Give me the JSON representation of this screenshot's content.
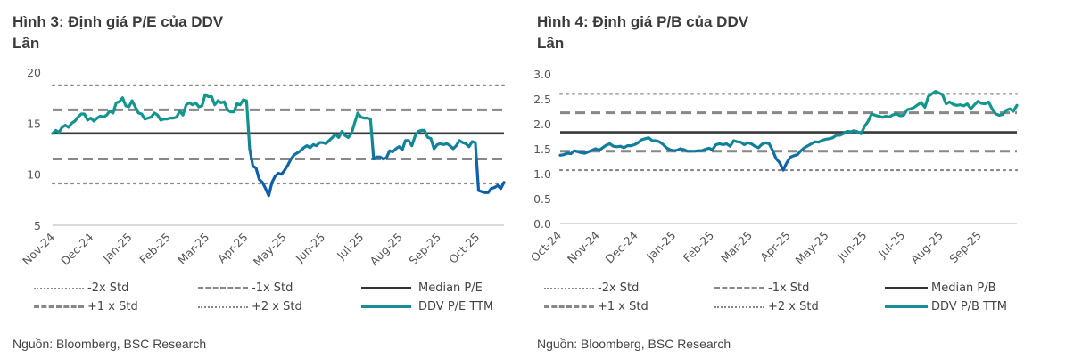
{
  "colors": {
    "series_high": "#12978d",
    "series_low": "#0d5fae",
    "median": "#3a3a3a",
    "std_lines": "#888888",
    "axis": "#d9d9d9",
    "legend_series": "#1a8e96"
  },
  "chart_data": [
    {
      "type": "line",
      "title": "Hình 3: Định giá P/E của DDV",
      "ylabel": "Lần",
      "xlabel": "",
      "ylim": [
        5,
        20
      ],
      "yticks": [
        "5",
        "10",
        "15",
        "20"
      ],
      "ytick_values": [
        5,
        10,
        15,
        20
      ],
      "x_tick_labels": [
        "Nov-24",
        "Dec-24",
        "Jan-25",
        "Feb-25",
        "Mar-25",
        "Apr-25",
        "May-25",
        "Jun-25",
        "Jul-25",
        "Aug-25",
        "Sep-25",
        "Oct-25"
      ],
      "x_range_months": [
        0,
        11.7
      ],
      "grid": false,
      "legend_position": "bottom",
      "reference_lines": [
        {
          "name": "-2x Std",
          "value": 9.1,
          "style": "dotted"
        },
        {
          "name": "-1x Std",
          "value": 11.5,
          "style": "dashed"
        },
        {
          "name": "Median P/E",
          "value": 14.0,
          "style": "solid"
        },
        {
          "name": "+1 x Std",
          "value": 16.3,
          "style": "dashed"
        },
        {
          "name": "+2 x Std",
          "value": 18.7,
          "style": "dotted"
        }
      ],
      "series": [
        {
          "name": "DDV P/E TTM",
          "values": [
            14.0,
            14.3,
            14.1,
            14.6,
            14.8,
            14.6,
            15.0,
            15.2,
            15.6,
            15.9,
            15.9,
            15.3,
            15.5,
            15.2,
            15.5,
            15.7,
            15.6,
            15.8,
            16.2,
            16.0,
            17.0,
            17.1,
            17.5,
            16.7,
            16.6,
            17.2,
            16.6,
            16.0,
            15.9,
            15.4,
            15.5,
            15.6,
            16.0,
            15.8,
            15.3,
            15.4,
            15.4,
            15.5,
            15.5,
            15.6,
            16.2,
            15.8,
            16.8,
            17.0,
            16.8,
            17.0,
            16.6,
            16.7,
            17.8,
            17.6,
            17.6,
            16.8,
            17.2,
            17.0,
            17.1,
            16.3,
            16.1,
            16.1,
            16.9,
            16.8,
            17.3,
            17.2,
            12.5,
            10.8,
            10.6,
            9.5,
            9.2,
            8.6,
            7.9,
            9.2,
            9.8,
            10.1,
            10.0,
            10.4,
            10.9,
            11.5,
            11.9,
            12.1,
            12.3,
            12.6,
            12.8,
            12.6,
            12.9,
            12.8,
            13.1,
            13.1,
            13.0,
            13.3,
            13.6,
            13.9,
            13.6,
            14.2,
            13.8,
            13.6,
            14.0,
            15.0,
            16.0,
            15.6,
            15.5,
            15.5,
            15.4,
            11.5,
            11.7,
            11.7,
            11.5,
            11.6,
            12.3,
            12.2,
            12.5,
            12.7,
            12.4,
            13.3,
            13.3,
            12.8,
            13.7,
            14.2,
            14.3,
            14.3,
            13.6,
            13.5,
            12.5,
            12.9,
            13.0,
            12.9,
            13.0,
            12.8,
            12.5,
            12.8,
            13.3,
            13.1,
            13.0,
            12.7,
            13.2,
            13.1,
            8.4,
            8.3,
            8.2,
            8.2,
            8.6,
            8.7,
            8.9,
            8.6,
            9.2
          ]
        }
      ],
      "legend": [
        {
          "label": "-2x Std",
          "style": "dotted"
        },
        {
          "label": "-1x Std",
          "style": "dashed"
        },
        {
          "label": "Median P/E",
          "style": "solid"
        },
        {
          "label": "+1 x Std",
          "style": "dashed"
        },
        {
          "label": "+2 x Std",
          "style": "dotted"
        },
        {
          "label": "DDV P/E TTM",
          "style": "series"
        }
      ],
      "source": "Nguồn: Bloomberg, BSC Research"
    },
    {
      "type": "line",
      "title": "Hình 4: Định giá P/B của DDV",
      "ylabel": "Lần",
      "xlabel": "",
      "ylim": [
        0,
        3
      ],
      "yticks": [
        "0.0",
        "0.5",
        "1.0",
        "1.5",
        "2.0",
        "2.5",
        "3.0"
      ],
      "ytick_values": [
        0,
        0.5,
        1.0,
        1.5,
        2.0,
        2.5,
        3.0
      ],
      "x_tick_labels": [
        "Oct-24",
        "Nov-24",
        "Dec-24",
        "Jan-25",
        "Feb-25",
        "Mar-25",
        "Apr-25",
        "May-25",
        "Jun-25",
        "Jul-25",
        "Aug-25",
        "Sep-25"
      ],
      "x_range_months": [
        0,
        11.9
      ],
      "grid": false,
      "legend_position": "bottom",
      "reference_lines": [
        {
          "name": "-2x Std",
          "value": 1.07,
          "style": "dotted"
        },
        {
          "name": "-1x Std",
          "value": 1.45,
          "style": "dashed"
        },
        {
          "name": "Median P/B",
          "value": 1.83,
          "style": "solid"
        },
        {
          "name": "+1 x Std",
          "value": 2.22,
          "style": "dashed"
        },
        {
          "name": "+2 x Std",
          "value": 2.6,
          "style": "dotted"
        }
      ],
      "series": [
        {
          "name": "DDV P/B TTM",
          "values": [
            1.37,
            1.38,
            1.41,
            1.4,
            1.46,
            1.44,
            1.42,
            1.41,
            1.44,
            1.47,
            1.5,
            1.47,
            1.52,
            1.57,
            1.6,
            1.55,
            1.54,
            1.55,
            1.52,
            1.56,
            1.56,
            1.58,
            1.62,
            1.68,
            1.7,
            1.72,
            1.66,
            1.66,
            1.64,
            1.59,
            1.52,
            1.48,
            1.46,
            1.47,
            1.5,
            1.48,
            1.45,
            1.45,
            1.45,
            1.46,
            1.46,
            1.49,
            1.51,
            1.48,
            1.58,
            1.6,
            1.58,
            1.6,
            1.55,
            1.66,
            1.64,
            1.63,
            1.58,
            1.62,
            1.6,
            1.55,
            1.52,
            1.59,
            1.62,
            1.6,
            1.47,
            1.3,
            1.22,
            1.07,
            1.22,
            1.33,
            1.36,
            1.38,
            1.46,
            1.52,
            1.56,
            1.6,
            1.64,
            1.63,
            1.67,
            1.69,
            1.7,
            1.72,
            1.77,
            1.77,
            1.8,
            1.85,
            1.84,
            1.86,
            1.84,
            1.8,
            1.95,
            2.05,
            2.2,
            2.17,
            2.15,
            2.13,
            2.15,
            2.14,
            2.18,
            2.2,
            2.16,
            2.17,
            2.28,
            2.3,
            2.33,
            2.38,
            2.43,
            2.33,
            2.55,
            2.6,
            2.65,
            2.62,
            2.58,
            2.4,
            2.44,
            2.39,
            2.37,
            2.38,
            2.36,
            2.4,
            2.3,
            2.38,
            2.45,
            2.41,
            2.4,
            2.44,
            2.3,
            2.2,
            2.17,
            2.19,
            2.27,
            2.3,
            2.25,
            2.37
          ]
        }
      ],
      "legend": [
        {
          "label": "-2x Std",
          "style": "dotted"
        },
        {
          "label": "-1x Std",
          "style": "dashed"
        },
        {
          "label": "Median P/B",
          "style": "solid"
        },
        {
          "label": "+1 x Std",
          "style": "dashed"
        },
        {
          "label": "+2 x Std",
          "style": "dotted"
        },
        {
          "label": "DDV P/B TTM",
          "style": "series"
        }
      ],
      "source": "Nguồn: Bloomberg, BSC Research"
    }
  ]
}
